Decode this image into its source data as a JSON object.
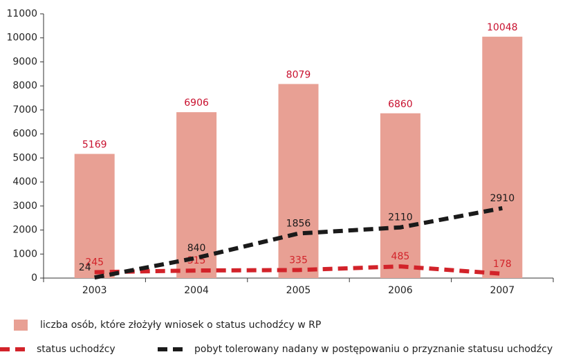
{
  "chart_data": {
    "type": "bar",
    "categories": [
      "2003",
      "2004",
      "2005",
      "2006",
      "2007"
    ],
    "ylim": [
      0,
      11000
    ],
    "yticks": [
      0,
      1000,
      2000,
      3000,
      4000,
      5000,
      6000,
      7000,
      8000,
      9000,
      10000,
      11000
    ],
    "series": [
      {
        "name": "liczba osób, które złożyły wniosek o status uchodźcy w RP",
        "type": "bar",
        "color": "#e8a094",
        "label_color": "#c8102e",
        "values": [
          5169,
          6906,
          8079,
          6860,
          10048
        ]
      },
      {
        "name": "status uchodźcy",
        "type": "line",
        "color": "#d2232a",
        "values": [
          245,
          315,
          335,
          485,
          178
        ]
      },
      {
        "name": "pobyt tolerowany nadany w postępowaniu o przyznanie statusu uchodźcy",
        "type": "line",
        "color": "#1a1a1a",
        "values": [
          24,
          840,
          1856,
          2110,
          2910
        ]
      }
    ]
  }
}
